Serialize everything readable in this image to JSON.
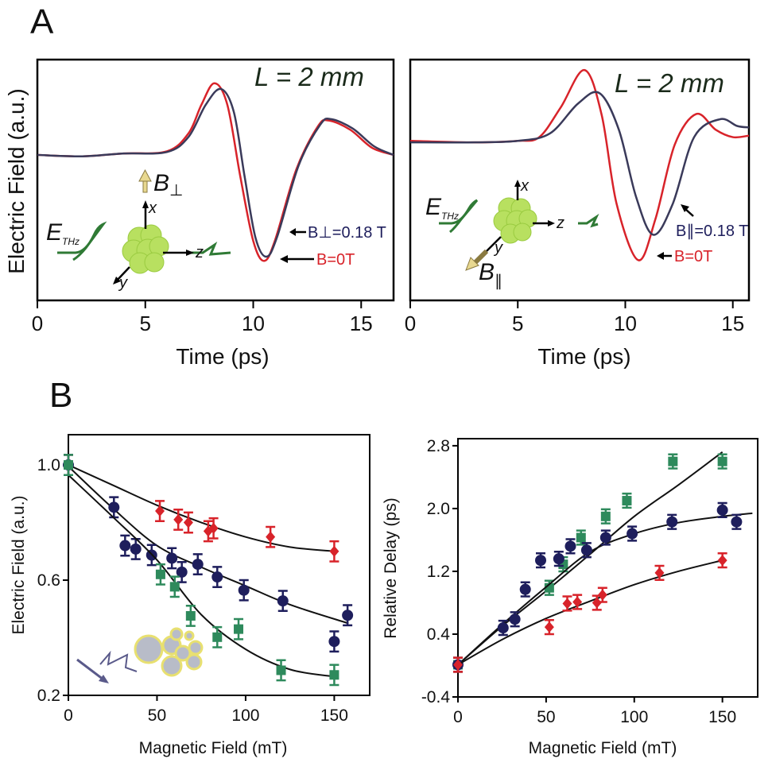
{
  "panel_labels": {
    "a": "A",
    "b": "B"
  },
  "colors": {
    "red": "#d8232a",
    "navy": "#1e1e5c",
    "green": "#2e8a5c",
    "cluster": "#b8e060",
    "field_arrow": "#e8d890",
    "wave": "#2f7a35"
  },
  "inset_a_left": {
    "field_label": "B",
    "field_sub": "⊥",
    "e_label": "E",
    "e_sub": "THz",
    "axis_x": "x",
    "axis_y": "y",
    "axis_z": "z",
    "ann_b": "B",
    "ann_b_sub": "⊥",
    "ann_b_value": "=0.18 T",
    "ann_zero": "B",
    "ann_zero_value": "=0T",
    "icons": [
      "cluster-icon",
      "magnetic-field-arrow-icon",
      "thz-wave-icon"
    ]
  },
  "inset_a_right": {
    "field_label": "B",
    "field_sub": "∥",
    "e_label": "E",
    "e_sub": "THz",
    "axis_x": "x",
    "axis_y": "y",
    "axis_z": "z",
    "ann_b": "B",
    "ann_b_sub": "∥",
    "ann_b_value": "=0.18 T",
    "ann_zero": "B",
    "ann_zero_value": "=0T"
  },
  "chart_data": [
    {
      "type": "line",
      "panel": "A-left",
      "annotation": "L = 2 mm",
      "xlabel": "Time (ps)",
      "ylabel": "Electric Field (a.u.)",
      "xlim": [
        0,
        16.5
      ],
      "ylim": [
        -2.03,
        1.33
      ],
      "xticks": [
        "0",
        "5",
        "10",
        "15"
      ],
      "xtick_values": [
        0,
        5,
        10,
        15
      ],
      "grid": false,
      "series": [
        {
          "label": "B=0T",
          "color": "#d8232a",
          "points": [
            [
              0,
              0
            ],
            [
              2,
              -0.02
            ],
            [
              4,
              0.02
            ],
            [
              6,
              0.05
            ],
            [
              7,
              0.3
            ],
            [
              7.6,
              0.7
            ],
            [
              8.2,
              1.0
            ],
            [
              8.8,
              0.7
            ],
            [
              9.4,
              -0.3
            ],
            [
              10,
              -1.2
            ],
            [
              10.5,
              -1.48
            ],
            [
              11,
              -1.2
            ],
            [
              12,
              -0.2
            ],
            [
              13,
              0.4
            ],
            [
              13.5,
              0.48
            ],
            [
              14.5,
              0.35
            ],
            [
              15.5,
              0.1
            ],
            [
              16.5,
              0
            ]
          ]
        },
        {
          "label": "B⊥=0.18 T",
          "color": "#3a3a5a",
          "points": [
            [
              0,
              0
            ],
            [
              2,
              -0.02
            ],
            [
              4,
              0.02
            ],
            [
              6,
              0.04
            ],
            [
              7,
              0.25
            ],
            [
              7.8,
              0.7
            ],
            [
              8.5,
              0.92
            ],
            [
              9.1,
              0.6
            ],
            [
              9.6,
              -0.3
            ],
            [
              10.1,
              -1.15
            ],
            [
              10.6,
              -1.42
            ],
            [
              11.1,
              -1.15
            ],
            [
              12.1,
              -0.15
            ],
            [
              13.1,
              0.42
            ],
            [
              13.6,
              0.5
            ],
            [
              14.6,
              0.37
            ],
            [
              15.6,
              0.12
            ],
            [
              16.5,
              0
            ]
          ]
        }
      ]
    },
    {
      "type": "line",
      "panel": "A-right",
      "annotation": "L = 2 mm",
      "xlabel": "Time (ps)",
      "ylabel": "",
      "xlim": [
        0,
        15.75
      ],
      "ylim": [
        -2.09,
        1.14
      ],
      "xticks": [
        "0",
        "5",
        "10",
        "15"
      ],
      "xtick_values": [
        0,
        5,
        10,
        15
      ],
      "grid": false,
      "series": [
        {
          "label": "B=0T",
          "color": "#d8232a",
          "points": [
            [
              0,
              0.05
            ],
            [
              3,
              0.03
            ],
            [
              5,
              0.05
            ],
            [
              6,
              0.1
            ],
            [
              7,
              0.5
            ],
            [
              8.1,
              1.0
            ],
            [
              8.9,
              0.4
            ],
            [
              9.6,
              -0.8
            ],
            [
              10.6,
              -1.55
            ],
            [
              11.4,
              -1.0
            ],
            [
              12.3,
              0
            ],
            [
              13.3,
              0.41
            ],
            [
              14.2,
              0.2
            ],
            [
              15,
              0.1
            ],
            [
              15.75,
              0.12
            ]
          ]
        },
        {
          "label": "B∥=0.18 T",
          "color": "#3a3a5a",
          "points": [
            [
              0,
              0.03
            ],
            [
              3,
              0.03
            ],
            [
              5,
              0.05
            ],
            [
              6.5,
              0.15
            ],
            [
              7.8,
              0.55
            ],
            [
              8.8,
              0.69
            ],
            [
              9.7,
              0.2
            ],
            [
              10.5,
              -0.7
            ],
            [
              11.3,
              -1.21
            ],
            [
              12.2,
              -0.8
            ],
            [
              13.2,
              0.1
            ],
            [
              14.4,
              0.34
            ],
            [
              15.2,
              0.25
            ],
            [
              15.75,
              0.23
            ]
          ]
        }
      ]
    },
    {
      "type": "scatter",
      "panel": "B-left",
      "xlabel": "Magnetic Field (mT)",
      "ylabel": "Electric Field (a.u.)",
      "xlim": [
        0,
        170
      ],
      "ylim": [
        0.2,
        1.105
      ],
      "xticks": [
        "0",
        "50",
        "100",
        "150"
      ],
      "xtick_values": [
        0,
        50,
        100,
        150
      ],
      "yticks": [
        "0.2",
        "0.6",
        "1.0"
      ],
      "ytick_values": [
        0.2,
        0.6,
        1.0
      ],
      "grid": false,
      "series": [
        {
          "marker": "diamond",
          "color": "#d8232a",
          "error": 0.035,
          "x": [
            0,
            51.6,
            62,
            67.7,
            78.9,
            81.9,
            114,
            150
          ],
          "y": [
            1.0,
            0.84,
            0.81,
            0.8,
            0.77,
            0.78,
            0.75,
            0.7
          ],
          "fit": [
            [
              0,
              1.0
            ],
            [
              25,
              0.93
            ],
            [
              50,
              0.86
            ],
            [
              75,
              0.8
            ],
            [
              100,
              0.75
            ],
            [
              125,
              0.715
            ],
            [
              150,
              0.7
            ]
          ]
        },
        {
          "marker": "circle",
          "color": "#1e1e5c",
          "error": 0.035,
          "x": [
            0,
            25.7,
            32,
            38,
            47,
            58.4,
            64,
            73,
            84,
            99,
            121,
            150,
            157.5
          ],
          "y": [
            1.0,
            0.853,
            0.72,
            0.708,
            0.687,
            0.676,
            0.628,
            0.655,
            0.611,
            0.565,
            0.528,
            0.387,
            0.478
          ],
          "fit": [
            [
              0,
              0.995
            ],
            [
              25,
              0.85
            ],
            [
              50,
              0.72
            ],
            [
              75,
              0.645
            ],
            [
              100,
              0.58
            ],
            [
              125,
              0.515
            ],
            [
              158,
              0.45
            ]
          ]
        },
        {
          "marker": "square",
          "color": "#2e8a5c",
          "error": 0.035,
          "x": [
            0,
            52,
            60,
            69,
            84,
            96,
            120,
            150
          ],
          "y": [
            1.0,
            0.62,
            0.577,
            0.476,
            0.402,
            0.43,
            0.287,
            0.271
          ],
          "fit": [
            [
              0,
              0.965
            ],
            [
              25,
              0.82
            ],
            [
              50,
              0.67
            ],
            [
              75,
              0.48
            ],
            [
              100,
              0.36
            ],
            [
              125,
              0.29
            ],
            [
              150,
              0.265
            ]
          ]
        }
      ]
    },
    {
      "type": "scatter",
      "panel": "B-right",
      "xlabel": "Magnetic Field (mT)",
      "ylabel": "Relative Delay (ps)",
      "xlim": [
        0,
        170
      ],
      "ylim": [
        -0.4,
        2.89
      ],
      "xticks": [
        "0",
        "50",
        "100",
        "150"
      ],
      "xtick_values": [
        0,
        50,
        100,
        150
      ],
      "yticks": [
        "-0.4",
        "0.4",
        "1.2",
        "2.0",
        "2.8"
      ],
      "ytick_values": [
        -0.4,
        0.4,
        1.2,
        2.0,
        2.8
      ],
      "grid": false,
      "series": [
        {
          "marker": "square",
          "color": "#2e8a5c",
          "error": 0.09,
          "x": [
            0,
            51.8,
            59.7,
            69.8,
            83.8,
            95.8,
            121.9,
            150
          ],
          "y": [
            0.01,
            0.99,
            1.29,
            1.63,
            1.9,
            2.1,
            2.6,
            2.6
          ],
          "fit": [
            [
              0,
              0.01
            ],
            [
              25,
              0.5
            ],
            [
              50,
              0.95
            ],
            [
              75,
              1.42
            ],
            [
              100,
              1.9
            ],
            [
              125,
              2.3
            ],
            [
              150,
              2.72
            ]
          ]
        },
        {
          "marker": "circle",
          "color": "#1e1e5c",
          "error": 0.09,
          "x": [
            0,
            25.6,
            32.3,
            38.2,
            46.9,
            57.2,
            63.8,
            73,
            83.8,
            98.8,
            121.4,
            150,
            158
          ],
          "y": [
            0.01,
            0.48,
            0.59,
            0.97,
            1.34,
            1.36,
            1.52,
            1.47,
            1.63,
            1.68,
            1.83,
            1.98,
            1.83
          ],
          "fit": [
            [
              0,
              0.01
            ],
            [
              25,
              0.52
            ],
            [
              50,
              1.0
            ],
            [
              75,
              1.45
            ],
            [
              100,
              1.68
            ],
            [
              125,
              1.82
            ],
            [
              150,
              1.9
            ],
            [
              167,
              1.94
            ]
          ]
        },
        {
          "marker": "diamond",
          "color": "#d8232a",
          "error": 0.09,
          "x": [
            0,
            51.8,
            62,
            67.7,
            78.8,
            82,
            114.3,
            150
          ],
          "y": [
            0.01,
            0.49,
            0.79,
            0.81,
            0.8,
            0.9,
            1.18,
            1.34
          ],
          "fit": [
            [
              0,
              0.01
            ],
            [
              25,
              0.33
            ],
            [
              50,
              0.6
            ],
            [
              75,
              0.82
            ],
            [
              100,
              1.03
            ],
            [
              125,
              1.2
            ],
            [
              150,
              1.34
            ]
          ]
        }
      ]
    }
  ]
}
